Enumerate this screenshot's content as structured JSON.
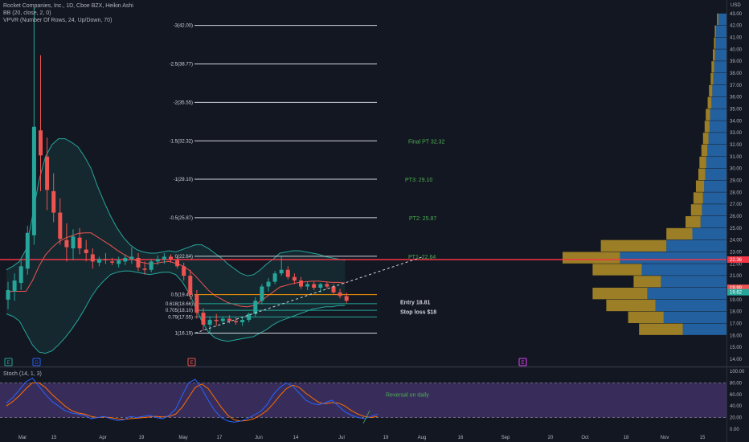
{
  "header": {
    "title_line": "Rocket Companies, Inc., 1D, Cboe BZX, Heikin Ashi",
    "bb_line": "BB (20, close, 2, 0)",
    "vpvr_line": "VPVR (Number Of Rows, 24, Up/Down, 70)",
    "stoch_line": "Stoch (14, 1, 3)"
  },
  "colors": {
    "background": "#131722",
    "up": "#26a69a",
    "down": "#ef5350",
    "stoch_band": "#7e57c2",
    "stoch_k": "#2962ff",
    "stoch_d": "#ff6d00",
    "resistance": "#f23645",
    "annotation": "#4caf50",
    "fib_lines": "#d1d4dc",
    "vpvr_up": "#2979c9",
    "vpvr_down": "#c9a227"
  },
  "chart_data": {
    "type": "candlestick",
    "symbol": "RKT",
    "price_axis": {
      "ylim": [
        14.0,
        44.0
      ],
      "ticks": [
        "44.00",
        "43.00",
        "42.00",
        "41.00",
        "40.00",
        "39.00",
        "38.00",
        "37.00",
        "36.00",
        "35.00",
        "34.00",
        "33.00",
        "32.00",
        "31.00",
        "30.00",
        "29.00",
        "28.00",
        "27.00",
        "26.00",
        "25.00",
        "24.00",
        "23.00",
        "22.00",
        "21.00",
        "20.00",
        "19.00",
        "18.00",
        "17.00",
        "16.00",
        "15.00",
        "14.00"
      ],
      "currency": "USD",
      "tags": [
        {
          "value": 22.36,
          "label": "22.36",
          "color": "#f23645"
        },
        {
          "value": 19.99,
          "label": "19.99",
          "color": "#ef5350"
        },
        {
          "value": 19.62,
          "label": "19.62",
          "color": "#26a69a"
        }
      ]
    },
    "x_axis": {
      "ticks": [
        "Mar",
        "15",
        "Apr",
        "19",
        "May",
        "17",
        "Jun",
        "14",
        "Jul",
        "19",
        "Aug",
        "16",
        "Sep",
        "20",
        "Oct",
        "18",
        "Nov",
        "15"
      ]
    },
    "candles": [
      {
        "o": 19.0,
        "h": 20.5,
        "l": 18.2,
        "c": 19.8
      },
      {
        "o": 19.7,
        "h": 21.2,
        "l": 18.9,
        "c": 20.6
      },
      {
        "o": 20.4,
        "h": 22.5,
        "l": 19.8,
        "c": 21.8
      },
      {
        "o": 21.6,
        "h": 25.2,
        "l": 21.1,
        "c": 24.6
      },
      {
        "o": 24.4,
        "h": 43.5,
        "l": 23.6,
        "c": 33.5
      },
      {
        "o": 33.2,
        "h": 39.5,
        "l": 28.1,
        "c": 31.1
      },
      {
        "o": 31.0,
        "h": 32.6,
        "l": 26.5,
        "c": 28.2
      },
      {
        "o": 28.1,
        "h": 29.6,
        "l": 25.5,
        "c": 26.3
      },
      {
        "o": 26.3,
        "h": 27.5,
        "l": 23.6,
        "c": 24.1
      },
      {
        "o": 24.0,
        "h": 25.4,
        "l": 22.2,
        "c": 23.4
      },
      {
        "o": 23.3,
        "h": 24.9,
        "l": 22.3,
        "c": 24.3
      },
      {
        "o": 24.2,
        "h": 25.0,
        "l": 22.8,
        "c": 23.3
      },
      {
        "o": 23.2,
        "h": 24.0,
        "l": 22.2,
        "c": 22.9
      },
      {
        "o": 22.8,
        "h": 23.3,
        "l": 21.6,
        "c": 22.2
      },
      {
        "o": 22.1,
        "h": 22.6,
        "l": 21.8,
        "c": 22.4
      },
      {
        "o": 22.4,
        "h": 22.9,
        "l": 22.0,
        "c": 22.3
      },
      {
        "o": 22.2,
        "h": 22.5,
        "l": 21.9,
        "c": 22.1
      },
      {
        "o": 22.0,
        "h": 22.6,
        "l": 21.7,
        "c": 22.3
      },
      {
        "o": 22.2,
        "h": 22.8,
        "l": 21.9,
        "c": 22.5
      },
      {
        "o": 22.4,
        "h": 23.4,
        "l": 22.0,
        "c": 22.6
      },
      {
        "o": 22.5,
        "h": 22.9,
        "l": 21.4,
        "c": 21.7
      },
      {
        "o": 21.6,
        "h": 22.2,
        "l": 21.1,
        "c": 21.5
      },
      {
        "o": 21.5,
        "h": 22.4,
        "l": 21.3,
        "c": 22.2
      },
      {
        "o": 22.2,
        "h": 22.7,
        "l": 21.9,
        "c": 22.4
      },
      {
        "o": 22.4,
        "h": 22.9,
        "l": 22.0,
        "c": 22.6
      },
      {
        "o": 22.6,
        "h": 22.8,
        "l": 22.1,
        "c": 22.4
      },
      {
        "o": 22.3,
        "h": 22.7,
        "l": 21.6,
        "c": 21.8
      },
      {
        "o": 21.8,
        "h": 22.1,
        "l": 20.6,
        "c": 21.0
      },
      {
        "o": 21.0,
        "h": 21.5,
        "l": 19.0,
        "c": 19.4
      },
      {
        "o": 19.4,
        "h": 19.8,
        "l": 17.4,
        "c": 17.9
      },
      {
        "o": 17.9,
        "h": 18.3,
        "l": 16.4,
        "c": 16.9
      },
      {
        "o": 16.9,
        "h": 17.6,
        "l": 16.2,
        "c": 17.3
      },
      {
        "o": 17.3,
        "h": 17.8,
        "l": 16.8,
        "c": 17.2
      },
      {
        "o": 17.2,
        "h": 17.6,
        "l": 16.9,
        "c": 17.4
      },
      {
        "o": 17.4,
        "h": 17.7,
        "l": 17.0,
        "c": 17.2
      },
      {
        "o": 17.2,
        "h": 17.5,
        "l": 16.9,
        "c": 17.1
      },
      {
        "o": 17.1,
        "h": 17.5,
        "l": 16.8,
        "c": 17.3
      },
      {
        "o": 17.3,
        "h": 17.9,
        "l": 17.1,
        "c": 17.8
      },
      {
        "o": 17.8,
        "h": 19.2,
        "l": 17.6,
        "c": 18.9
      },
      {
        "o": 18.9,
        "h": 20.3,
        "l": 18.6,
        "c": 20.1
      },
      {
        "o": 20.1,
        "h": 20.8,
        "l": 19.7,
        "c": 20.5
      },
      {
        "o": 20.5,
        "h": 21.4,
        "l": 20.3,
        "c": 21.2
      },
      {
        "o": 21.2,
        "h": 22.6,
        "l": 21.0,
        "c": 21.5
      },
      {
        "o": 21.5,
        "h": 21.8,
        "l": 20.7,
        "c": 20.9
      },
      {
        "o": 20.9,
        "h": 21.2,
        "l": 20.3,
        "c": 20.6
      },
      {
        "o": 20.6,
        "h": 20.9,
        "l": 19.9,
        "c": 20.1
      },
      {
        "o": 20.1,
        "h": 20.5,
        "l": 19.8,
        "c": 20.3
      },
      {
        "o": 20.3,
        "h": 20.5,
        "l": 19.8,
        "c": 20.0
      },
      {
        "o": 20.0,
        "h": 20.4,
        "l": 19.6,
        "c": 20.3
      },
      {
        "o": 20.3,
        "h": 20.5,
        "l": 19.9,
        "c": 20.1
      },
      {
        "o": 20.1,
        "h": 20.3,
        "l": 19.4,
        "c": 19.6
      },
      {
        "o": 19.6,
        "h": 19.9,
        "l": 19.1,
        "c": 19.3
      },
      {
        "o": 19.3,
        "h": 19.6,
        "l": 18.7,
        "c": 18.9
      }
    ],
    "bollinger": {
      "upper": [
        21.5,
        21.8,
        22.2,
        23.2,
        26.0,
        29.0,
        31.0,
        32.0,
        32.5,
        32.5,
        32.2,
        31.8,
        31.0,
        30.0,
        28.5,
        27.2,
        26.0,
        25.0,
        24.2,
        23.6,
        23.2,
        23.0,
        22.9,
        22.9,
        23.0,
        23.1,
        23.0,
        23.2,
        23.4,
        23.6,
        23.6,
        23.3,
        22.9,
        22.5,
        22.0,
        21.6,
        21.2,
        21.0,
        21.1,
        21.5,
        22.0,
        22.4,
        22.9,
        23.0,
        23.1,
        23.1,
        23.0,
        22.9,
        22.8,
        22.6,
        22.5,
        22.4,
        22.3
      ],
      "lower": [
        17.8,
        17.6,
        17.2,
        16.2,
        15.2,
        14.6,
        14.5,
        14.7,
        15.2,
        15.8,
        16.5,
        17.3,
        18.2,
        19.2,
        20.0,
        20.6,
        21.1,
        21.3,
        21.4,
        21.4,
        21.3,
        21.2,
        21.1,
        21.2,
        21.3,
        21.3,
        21.1,
        20.5,
        19.6,
        18.4,
        17.2,
        16.3,
        15.8,
        15.6,
        15.5,
        15.6,
        15.7,
        15.8,
        15.9,
        16.2,
        16.5,
        16.9,
        17.2,
        17.4,
        17.6,
        17.8,
        18.0,
        18.2,
        18.3,
        18.4,
        18.4,
        18.5,
        18.5
      ]
    },
    "fib_levels": [
      {
        "label": "-3(42.00)",
        "value": 42.0
      },
      {
        "label": "-2.5(38.77)",
        "value": 38.77
      },
      {
        "label": "-2(35.55)",
        "value": 35.55
      },
      {
        "label": "-1.5(32.32)",
        "value": 32.32
      },
      {
        "label": "-1(29.10)",
        "value": 29.1
      },
      {
        "label": "-0.5(25.87)",
        "value": 25.87
      },
      {
        "label": "0(22.64)",
        "value": 22.64
      },
      {
        "label": "0.5(19.42)",
        "value": 19.42
      },
      {
        "label": "0.618(18.66)",
        "value": 18.66
      },
      {
        "label": "0.705(18.10)",
        "value": 18.1
      },
      {
        "label": "0.79(17.55)",
        "value": 17.55
      },
      {
        "label": "1(16.19)",
        "value": 16.19
      }
    ],
    "resistance_value": 22.36,
    "annotations": [
      {
        "text": "Final PT 32.32",
        "value": 32.32,
        "color": "#4caf50"
      },
      {
        "text": "PT3: 29.10",
        "value": 29.1,
        "color": "#4caf50"
      },
      {
        "text": "PT2: 25.87",
        "value": 25.87,
        "color": "#4caf50"
      },
      {
        "text": "PT1: 22.64",
        "value": 22.64,
        "color": "#4caf50"
      },
      {
        "text": "Entry 18.81",
        "value": 18.81,
        "color": "#d1d4dc"
      },
      {
        "text": "Stop loss $18",
        "value": 18.0,
        "color": "#d1d4dc"
      }
    ],
    "trendline": {
      "start": {
        "bar": 29,
        "value": 16.2
      },
      "end": {
        "bar": 64,
        "value": 22.6
      }
    },
    "event_markers": [
      {
        "label": "E",
        "color": "#26a69a"
      },
      {
        "label": "D",
        "color": "#2962ff"
      },
      {
        "label": "E",
        "color": "#ef5350"
      },
      {
        "label": "E",
        "color": "#e040fb"
      }
    ],
    "vpvr": [
      {
        "price": 42.5,
        "up": 0.3,
        "down": 0.05
      },
      {
        "price": 41.5,
        "up": 0.38,
        "down": 0.05
      },
      {
        "price": 40.5,
        "up": 0.4,
        "down": 0.06
      },
      {
        "price": 39.5,
        "up": 0.42,
        "down": 0.08
      },
      {
        "price": 38.5,
        "up": 0.45,
        "down": 0.1
      },
      {
        "price": 37.5,
        "up": 0.48,
        "down": 0.1
      },
      {
        "price": 36.5,
        "up": 0.52,
        "down": 0.12
      },
      {
        "price": 35.5,
        "up": 0.55,
        "down": 0.14
      },
      {
        "price": 34.5,
        "up": 0.6,
        "down": 0.16
      },
      {
        "price": 33.5,
        "up": 0.62,
        "down": 0.18
      },
      {
        "price": 32.5,
        "up": 0.66,
        "down": 0.2
      },
      {
        "price": 31.5,
        "up": 0.7,
        "down": 0.22
      },
      {
        "price": 30.5,
        "up": 0.74,
        "down": 0.25
      },
      {
        "price": 29.5,
        "up": 0.78,
        "down": 0.25
      },
      {
        "price": 28.5,
        "up": 0.82,
        "down": 0.3
      },
      {
        "price": 27.5,
        "up": 0.86,
        "down": 0.35
      },
      {
        "price": 26.5,
        "up": 0.9,
        "down": 0.4
      },
      {
        "price": 25.5,
        "up": 0.95,
        "down": 0.55
      },
      {
        "price": 24.5,
        "up": 1.25,
        "down": 0.95
      },
      {
        "price": 23.5,
        "up": 2.2,
        "down": 2.4
      },
      {
        "price": 22.5,
        "up": 3.9,
        "down": 2.1
      },
      {
        "price": 21.5,
        "up": 3.1,
        "down": 1.8
      },
      {
        "price": 20.5,
        "up": 2.4,
        "down": 1.0
      },
      {
        "price": 19.5,
        "up": 2.9,
        "down": 2.0
      },
      {
        "price": 18.5,
        "up": 2.6,
        "down": 1.8
      },
      {
        "price": 17.5,
        "up": 2.3,
        "down": 1.3
      },
      {
        "price": 16.5,
        "up": 1.6,
        "down": 1.6
      }
    ],
    "stochastic": {
      "ylim": [
        0,
        100
      ],
      "ticks": [
        "100.00",
        "80.00",
        "60.00",
        "40.00",
        "20.00",
        "0.00"
      ],
      "band": [
        20,
        80
      ],
      "annotation": "Reversal on daily",
      "k": [
        45,
        55,
        68,
        82,
        88,
        74,
        60,
        48,
        40,
        32,
        28,
        26,
        24,
        18,
        20,
        22,
        18,
        15,
        16,
        22,
        20,
        22,
        24,
        20,
        18,
        24,
        35,
        58,
        80,
        86,
        70,
        50,
        32,
        20,
        14,
        12,
        14,
        18,
        24,
        30,
        42,
        60,
        72,
        80,
        74,
        62,
        50,
        44,
        42,
        46,
        50,
        40,
        30,
        24,
        20,
        18,
        22,
        26
      ],
      "d": [
        40,
        48,
        58,
        70,
        80,
        80,
        72,
        60,
        50,
        40,
        32,
        28,
        26,
        22,
        20,
        21,
        20,
        18,
        17,
        18,
        19,
        20,
        21,
        22,
        21,
        22,
        26,
        38,
        55,
        72,
        78,
        70,
        54,
        38,
        24,
        16,
        14,
        15,
        18,
        24,
        32,
        44,
        58,
        70,
        76,
        72,
        62,
        54,
        46,
        44,
        46,
        45,
        40,
        32,
        26,
        22,
        20,
        22
      ]
    }
  }
}
